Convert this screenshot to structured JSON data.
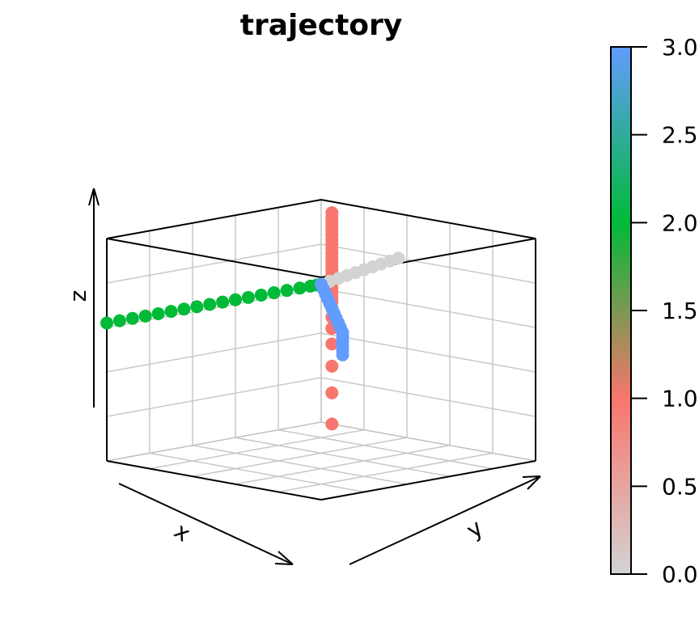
{
  "chart_data": {
    "type": "scatter3d",
    "title": "trajectory",
    "xlabel": "x",
    "ylabel": "y",
    "zlabel": "z",
    "grid": true,
    "colorbar": {
      "ticks": [
        0.0,
        0.5,
        1.0,
        1.5,
        2.0,
        2.5,
        3.0
      ],
      "tick_labels": [
        "0.0",
        "0.5",
        "1.0",
        "1.5",
        "2.0",
        "2.5",
        "3.0"
      ],
      "range": [
        0,
        3
      ],
      "stops": [
        {
          "value": 0.0,
          "color": "#d3d3d3"
        },
        {
          "value": 1.0,
          "color": "#f8766d"
        },
        {
          "value": 2.0,
          "color": "#00ba38"
        },
        {
          "value": 3.0,
          "color": "#619cff"
        }
      ]
    },
    "series": [
      {
        "color": "#f8766d",
        "points": [
          [
            0.0,
            0.05,
            0.95
          ],
          [
            0.0,
            0.05,
            0.93
          ],
          [
            0.0,
            0.05,
            0.91
          ],
          [
            0.0,
            0.05,
            0.89
          ],
          [
            0.0,
            0.05,
            0.87
          ],
          [
            0.0,
            0.05,
            0.85
          ],
          [
            0.0,
            0.05,
            0.83
          ],
          [
            0.0,
            0.05,
            0.81
          ],
          [
            0.0,
            0.05,
            0.79
          ],
          [
            0.0,
            0.05,
            0.77
          ],
          [
            0.0,
            0.05,
            0.75
          ],
          [
            0.0,
            0.05,
            0.73
          ],
          [
            0.0,
            0.05,
            0.71
          ],
          [
            0.0,
            0.05,
            0.69
          ],
          [
            0.0,
            0.05,
            0.67
          ],
          [
            0.0,
            0.05,
            0.65
          ],
          [
            0.0,
            0.05,
            0.63
          ],
          [
            0.0,
            0.05,
            0.61
          ],
          [
            0.0,
            0.05,
            0.59
          ],
          [
            0.0,
            0.05,
            0.57
          ],
          [
            0.0,
            0.05,
            0.55
          ],
          [
            0.0,
            0.05,
            0.52
          ],
          [
            0.0,
            0.05,
            0.48
          ],
          [
            0.0,
            0.05,
            0.43
          ],
          [
            0.0,
            0.05,
            0.36
          ],
          [
            0.0,
            0.05,
            0.26
          ],
          [
            0.0,
            0.05,
            0.14
          ],
          [
            0.0,
            0.05,
            0.0
          ]
        ]
      },
      {
        "color": "#00ba38",
        "points": [
          [
            1.0,
            0.0,
            0.62
          ],
          [
            0.94,
            0.0,
            0.62
          ],
          [
            0.88,
            0.0,
            0.62
          ],
          [
            0.82,
            0.0,
            0.62
          ],
          [
            0.76,
            0.0,
            0.62
          ],
          [
            0.7,
            0.0,
            0.62
          ],
          [
            0.64,
            0.0,
            0.62
          ],
          [
            0.58,
            0.0,
            0.62
          ],
          [
            0.52,
            0.0,
            0.62
          ],
          [
            0.46,
            0.0,
            0.62
          ],
          [
            0.4,
            0.0,
            0.62
          ],
          [
            0.34,
            0.0,
            0.62
          ],
          [
            0.28,
            0.0,
            0.62
          ],
          [
            0.22,
            0.0,
            0.62
          ],
          [
            0.16,
            0.0,
            0.62
          ],
          [
            0.1,
            0.0,
            0.62
          ],
          [
            0.05,
            0.0,
            0.62
          ],
          [
            0.02,
            0.0,
            0.62
          ],
          [
            0.0,
            0.0,
            0.62
          ]
        ]
      },
      {
        "color": "#d3d3d3",
        "points": [
          [
            0.0,
            0.0,
            0.62
          ],
          [
            0.0,
            0.04,
            0.64
          ],
          [
            0.0,
            0.08,
            0.66
          ],
          [
            0.0,
            0.12,
            0.68
          ],
          [
            0.0,
            0.16,
            0.7
          ],
          [
            0.0,
            0.2,
            0.72
          ],
          [
            0.0,
            0.24,
            0.74
          ],
          [
            0.0,
            0.28,
            0.76
          ],
          [
            0.0,
            0.32,
            0.78
          ],
          [
            0.0,
            0.36,
            0.8
          ]
        ]
      },
      {
        "color": "#619cff",
        "points": [
          [
            0.0,
            0.0,
            0.62
          ],
          [
            0.0,
            0.01,
            0.6
          ],
          [
            0.0,
            0.02,
            0.58
          ],
          [
            0.0,
            0.03,
            0.56
          ],
          [
            0.0,
            0.04,
            0.54
          ],
          [
            0.0,
            0.05,
            0.52
          ],
          [
            0.0,
            0.06,
            0.5
          ],
          [
            0.0,
            0.07,
            0.48
          ],
          [
            0.0,
            0.08,
            0.46
          ],
          [
            0.0,
            0.09,
            0.44
          ],
          [
            0.0,
            0.1,
            0.42
          ],
          [
            0.0,
            0.1,
            0.4
          ],
          [
            0.0,
            0.1,
            0.38
          ],
          [
            0.0,
            0.1,
            0.36
          ],
          [
            0.0,
            0.1,
            0.34
          ],
          [
            0.0,
            0.1,
            0.32
          ]
        ]
      }
    ]
  }
}
